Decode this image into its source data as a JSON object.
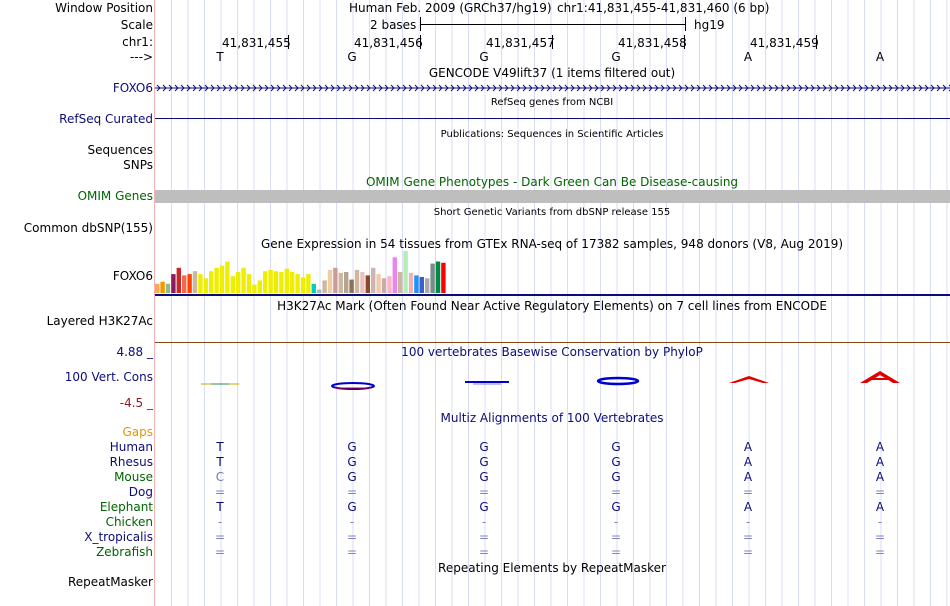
{
  "header": {
    "window_position_label": "Window Position",
    "scale_label": "Scale",
    "chr_label": "chr1:",
    "strand_label": "--->",
    "assembly_text": "Human Feb. 2009 (GRCh37/hg19)",
    "position_text": "chr1:41,831,455-41,831,460 (6 bp)",
    "scale_text": "2 bases",
    "scale_db": "hg19"
  },
  "ruler": {
    "ticks": [
      "41,831,455",
      "41,831,456",
      "41,831,457",
      "41,831,458",
      "41,831,459"
    ],
    "bases": [
      "T",
      "G",
      "G",
      "G",
      "A",
      "A"
    ]
  },
  "tracks": {
    "gencode": {
      "title": "GENCODE V49lift37 (1 items filtered out)",
      "label": "FOXO6"
    },
    "refseq": {
      "title": "RefSeq genes from NCBI",
      "label": "RefSeq Curated"
    },
    "publications": {
      "title": "Publications: Sequences in Scientific Articles",
      "label": "Sequences"
    },
    "snps": {
      "label": "SNPs"
    },
    "omim": {
      "title": "OMIM Gene Phenotypes - Dark Green Can Be Disease-causing",
      "label": "OMIM Genes"
    },
    "dbsnp": {
      "title": "Short Genetic Variants from dbSNP release 155",
      "label": "Common dbSNP(155)"
    },
    "gtex": {
      "title": "Gene Expression in 54 tissues from GTEx RNA-seq of 17382 samples, 948 donors (V8, Aug 2019)",
      "label": "FOXO6",
      "bar_levels": [
        0.22,
        0.27,
        0.22,
        0.45,
        0.6,
        0.42,
        0.45,
        0.52,
        0.45,
        0.35,
        0.52,
        0.6,
        0.65,
        0.75,
        0.4,
        0.5,
        0.6,
        0.45,
        0.2,
        0.3,
        0.52,
        0.55,
        0.52,
        0.5,
        0.58,
        0.5,
        0.45,
        0.37,
        0.45,
        0.22,
        0.08,
        0.3,
        0.55,
        0.6,
        0.48,
        0.5,
        0.32,
        0.55,
        0.5,
        0.42,
        0.6,
        0.45,
        0.35,
        0.4,
        0.85,
        0.5,
        1.0,
        0.48,
        0.42,
        0.38,
        0.35,
        0.7,
        0.75,
        0.72
      ],
      "bar_colors": [
        "#ffa54f",
        "#ee9a00",
        "#8fbc8f",
        "#8b1c62",
        "#cd2626",
        "#ee6a50",
        "#ff4500",
        "#cdb79e",
        "#eeee00",
        "#eeee00",
        "#eeee00",
        "#eeee00",
        "#eeee00",
        "#eeee00",
        "#eeee00",
        "#eeee00",
        "#eeee00",
        "#eeee00",
        "#eeee00",
        "#eeee00",
        "#eeee00",
        "#eeee00",
        "#eeee00",
        "#eeee00",
        "#eeee00",
        "#eeee00",
        "#eeee00",
        "#eeee00",
        "#eeee00",
        "#00cdcd",
        "#9ac0cd",
        "#cdb79e",
        "#eecfa1",
        "#cd9b9b",
        "#cdb79e",
        "#b4a590",
        "#8b7355",
        "#cdb79e",
        "#e8c2c2",
        "#8b4726",
        "#cdb5b5",
        "#eecbad",
        "#cdaaaa",
        "#ffb6c1",
        "#ee82ee",
        "#cdb79e",
        "#b4eeb4",
        "#eeb4b4",
        "#1e90ff",
        "#3a5fcd",
        "#aaaaaa",
        "#7a8b8b",
        "#008b45",
        "#ff0000"
      ]
    },
    "h3k27ac": {
      "title": "H3K27Ac Mark (Often Found Near Active Regulatory Elements) on 7 cell lines from ENCODE",
      "label": "Layered H3K27Ac"
    },
    "phylop": {
      "title": "100 vertebrates Basewise Conservation by PhyloP",
      "label": "100 Vert. Cons",
      "max_label": "4.88 _",
      "min_label": "-4.5 _"
    },
    "multiz": {
      "title": "Multiz Alignments of 100 Vertebrates",
      "species": [
        {
          "name": "Gaps",
          "color": "#e69500",
          "bases": [
            "",
            "",
            "",
            "",
            "",
            ""
          ]
        },
        {
          "name": "Human",
          "color": "#0c0c78",
          "bases": [
            "T",
            "G",
            "G",
            "G",
            "A",
            "A"
          ]
        },
        {
          "name": "Rhesus",
          "color": "#0c0c78",
          "bases": [
            "T",
            "G",
            "G",
            "G",
            "A",
            "A"
          ]
        },
        {
          "name": "Mouse",
          "color": "#0c0c78",
          "bases": [
            "C",
            "G",
            "G",
            "G",
            "A",
            "A"
          ]
        },
        {
          "name": "Dog",
          "color": "#0c0c78",
          "bases": [
            "=",
            "=",
            "=",
            "=",
            "=",
            "="
          ]
        },
        {
          "name": "Elephant",
          "color": "#006400",
          "bases": [
            "T",
            "G",
            "G",
            "G",
            "A",
            "A"
          ]
        },
        {
          "name": "Chicken",
          "color": "#006400",
          "bases": [
            "-",
            "-",
            "-",
            "-",
            "-",
            "-"
          ]
        },
        {
          "name": "X_tropicalis",
          "color": "#0c0c78",
          "bases": [
            "=",
            "=",
            "=",
            "=",
            "=",
            "="
          ]
        },
        {
          "name": "Zebrafish",
          "color": "#006400",
          "bases": [
            "=",
            "=",
            "=",
            "=",
            "=",
            "="
          ]
        }
      ]
    },
    "repeatmasker": {
      "title": "Repeating Elements by RepeatMasker",
      "label": "RepeatMasker"
    }
  },
  "colors": {
    "track_navy": "#0c0c78",
    "omim_green": "#006400",
    "omim_bar": "#bebebe",
    "phylop_max": "#0c0c78",
    "phylop_min": "#8b1a1a",
    "h3k27ac_line": "#8b4513",
    "separator": "#f0b4b4",
    "grid": "#c8c8ff"
  }
}
